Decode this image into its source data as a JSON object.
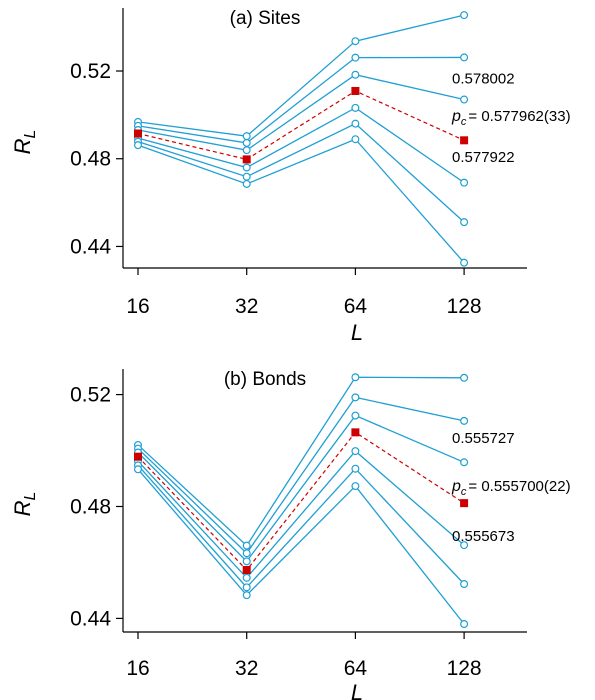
{
  "chart_data": [
    {
      "type": "line",
      "title": "(a) Sites",
      "xlabel": "L",
      "ylabel": "R_L",
      "x_scale": "log2",
      "categories": [
        16,
        32,
        64,
        128
      ],
      "x_ticks": [
        "16",
        "32",
        "64",
        "128"
      ],
      "y_ticks": [
        "0.44",
        "0.48",
        "0.52"
      ],
      "ylim": [
        0.432,
        0.546
      ],
      "grid": false,
      "colors": {
        "curve": "#1f9fd4",
        "critical": "#cc0000"
      },
      "series": [
        {
          "values": [
            0.4968,
            0.4903,
            0.5336,
            0.5455
          ]
        },
        {
          "values": [
            0.495,
            0.4872,
            0.5261,
            0.5262
          ]
        },
        {
          "values": [
            0.4931,
            0.4839,
            0.5183,
            0.507
          ]
        },
        {
          "values": [
            0.4894,
            0.476,
            0.5032,
            0.4691
          ]
        },
        {
          "values": [
            0.4878,
            0.4718,
            0.496,
            0.4511
          ]
        },
        {
          "values": [
            0.4862,
            0.4685,
            0.4889,
            0.4326
          ]
        }
      ],
      "critical_series": {
        "values": [
          0.4915,
          0.4797,
          0.5109,
          0.4884
        ]
      },
      "annotations": [
        {
          "text": "0.578002",
          "y": 0.5167
        },
        {
          "text": "= 0.577962(33)",
          "prefix": "p",
          "subscript": "c",
          "y": 0.4995
        },
        {
          "text": "0.577922",
          "y": 0.4808
        }
      ]
    },
    {
      "type": "line",
      "title": "(b) Bonds",
      "xlabel": "L",
      "ylabel": "R_L",
      "x_scale": "log2",
      "categories": [
        16,
        32,
        64,
        128
      ],
      "x_ticks": [
        "16",
        "32",
        "64",
        "128"
      ],
      "y_ticks": [
        "0.44",
        "0.48",
        "0.52"
      ],
      "ylim": [
        0.438,
        0.527
      ],
      "grid": false,
      "colors": {
        "curve": "#1f9fd4",
        "critical": "#cc0000"
      },
      "series": [
        {
          "values": [
            0.502,
            0.466,
            0.5262,
            0.526
          ]
        },
        {
          "values": [
            0.5007,
            0.4633,
            0.519,
            0.5106
          ]
        },
        {
          "values": [
            0.4993,
            0.4604,
            0.5125,
            0.4958
          ]
        },
        {
          "values": [
            0.4962,
            0.4545,
            0.4998,
            0.4662
          ]
        },
        {
          "values": [
            0.4947,
            0.4511,
            0.4935,
            0.4523
          ]
        },
        {
          "values": [
            0.4933,
            0.4483,
            0.4873,
            0.438
          ]
        }
      ],
      "critical_series": {
        "values": [
          0.4978,
          0.4573,
          0.5065,
          0.4812
        ]
      },
      "annotations": [
        {
          "text": "0.555727",
          "y": 0.5045
        },
        {
          "text": "= 0.555700(22)",
          "prefix": "p",
          "subscript": "c",
          "y": 0.4873
        },
        {
          "text": "0.555673",
          "y": 0.4695
        }
      ]
    }
  ]
}
